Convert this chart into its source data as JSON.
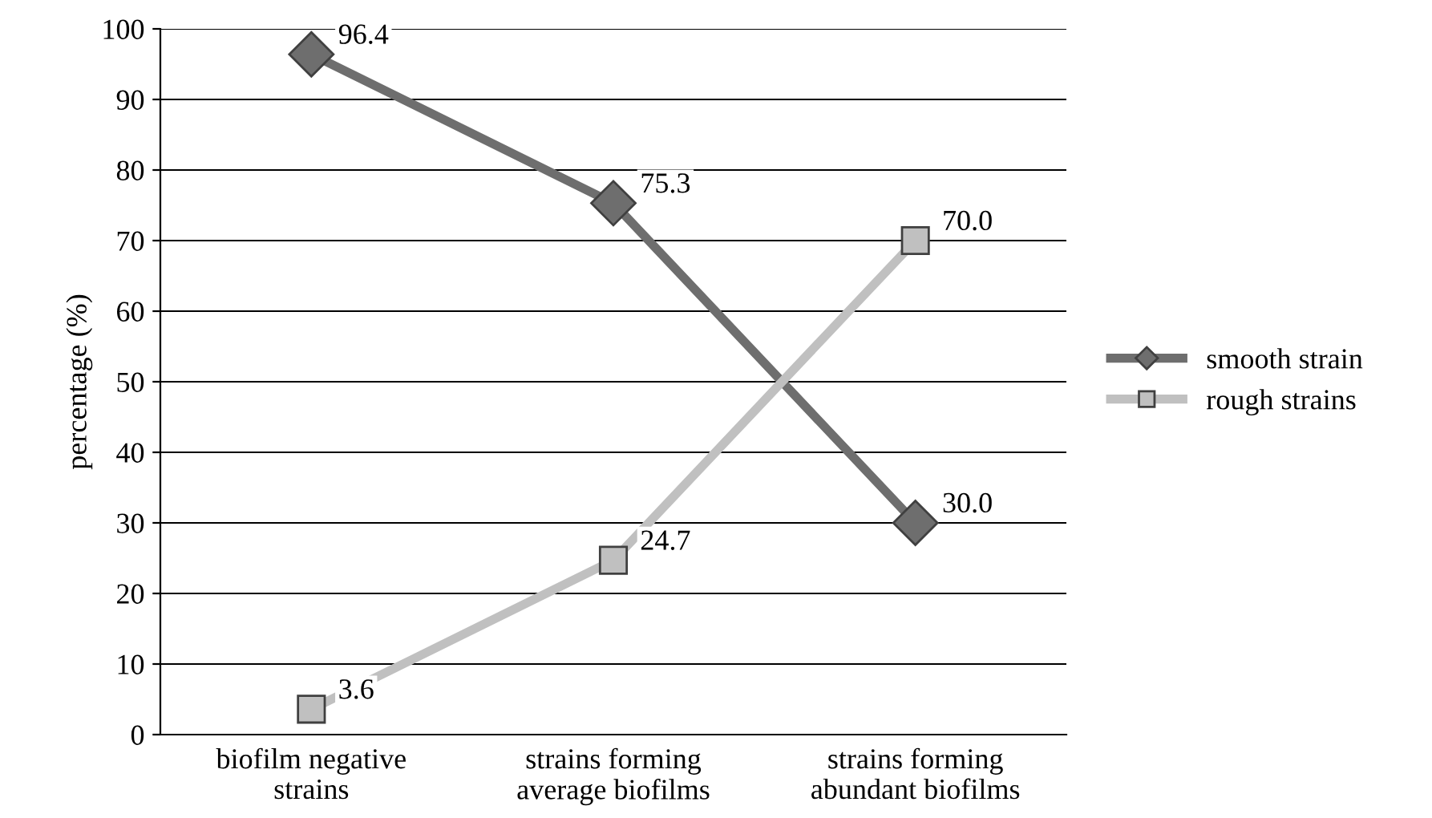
{
  "chart_data": {
    "type": "line",
    "ylabel": "percentage (%)",
    "categories": [
      "biofilm negative\nstrains",
      "strains forming\naverage biofilms",
      "strains forming\nabundant biofilms"
    ],
    "series": [
      {
        "name": "smooth strain",
        "color": "#6e6e6e",
        "marker": "diamond",
        "values": [
          96.4,
          75.3,
          30.0
        ],
        "value_labels": [
          "96.4",
          "75.3",
          "30.0"
        ]
      },
      {
        "name": "rough strains",
        "color": "#c0c0c0",
        "marker": "square",
        "values": [
          3.6,
          24.7,
          70.0
        ],
        "value_labels": [
          "3.6",
          "24.7",
          "70.0"
        ]
      }
    ],
    "ylim": [
      0,
      100
    ],
    "yticks": [
      0,
      10,
      20,
      30,
      40,
      50,
      60,
      70,
      80,
      90,
      100
    ],
    "grid": "y",
    "legend": "right",
    "line_style": "solid"
  }
}
